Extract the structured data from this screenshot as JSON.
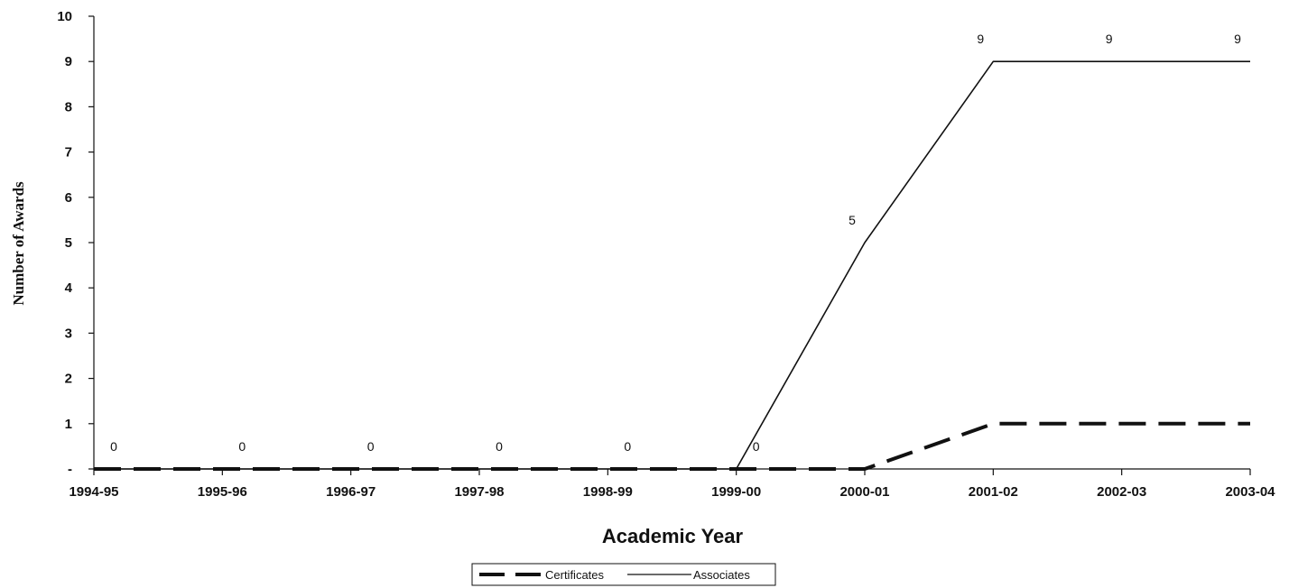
{
  "chart_data": {
    "type": "line",
    "title": "",
    "xlabel": "Academic Year",
    "ylabel": "Number of Awards",
    "categories": [
      "1994-95",
      "1995-96",
      "1996-97",
      "1997-98",
      "1998-99",
      "1999-00",
      "2000-01",
      "2001-02",
      "2002-03",
      "2003-04"
    ],
    "ylim": [
      0,
      10
    ],
    "yticks": [
      "-",
      "1",
      "2",
      "3",
      "4",
      "5",
      "6",
      "7",
      "8",
      "9",
      "10"
    ],
    "grid": false,
    "legend_position": "bottom",
    "series": [
      {
        "name": "Certificates",
        "style": "dashed-thick",
        "color": "#111111",
        "values": [
          0,
          0,
          0,
          0,
          0,
          0,
          0,
          1,
          1,
          1
        ],
        "data_labels": [
          null,
          null,
          null,
          null,
          null,
          null,
          null,
          null,
          null,
          null
        ]
      },
      {
        "name": "Associates",
        "style": "solid-thin",
        "color": "#111111",
        "values": [
          0,
          0,
          0,
          0,
          0,
          0,
          5,
          9,
          9,
          9
        ],
        "data_labels": [
          "0",
          "0",
          "0",
          "0",
          "0",
          "0",
          "5",
          "9",
          "9",
          "9"
        ]
      }
    ]
  }
}
